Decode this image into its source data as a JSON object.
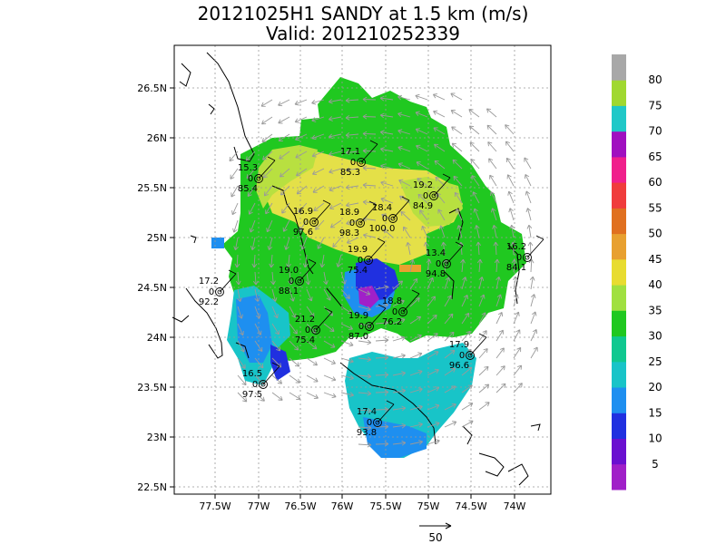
{
  "title_line1": "20121025H1 SANDY at 1.5 km (m/s)",
  "title_line2": "Valid: 201210252339",
  "lat_ticks": [
    "26.5N",
    "26N",
    "25.5N",
    "25N",
    "24.5N",
    "24N",
    "23.5N",
    "23N",
    "22.5N"
  ],
  "lon_ticks": [
    "77.5W",
    "77W",
    "76.5W",
    "76W",
    "75.5W",
    "75W",
    "74.5W",
    "74W"
  ],
  "colorbar": {
    "labels": [
      "5",
      "10",
      "15",
      "20",
      "25",
      "30",
      "35",
      "40",
      "45",
      "50",
      "55",
      "60",
      "65",
      "70",
      "75",
      "80"
    ],
    "colors": [
      "#a020c8",
      "#6a10d0",
      "#2030e0",
      "#1e8ff0",
      "#18c4c8",
      "#10c890",
      "#20c820",
      "#a0e040",
      "#e8dc30",
      "#e8a030",
      "#e07020",
      "#f03c3c",
      "#f0208c",
      "#a010c0",
      "#20c8c8",
      "#a0d830",
      "#a8a8a8"
    ]
  },
  "reference_vector": {
    "label": "50"
  },
  "stations": [
    {
      "top": "17.1",
      "mid": "0",
      "bottom": "85.3"
    },
    {
      "top": "15.3",
      "mid": "0",
      "bottom": "85.4"
    },
    {
      "top": "19.2",
      "mid": "0",
      "bottom": "84.9"
    },
    {
      "top": "16.9",
      "mid": "0",
      "bottom": "97.6"
    },
    {
      "top": "18.9",
      "mid": "0",
      "bottom": "98.3"
    },
    {
      "top": "18.4",
      "mid": "0",
      "bottom": "100.0"
    },
    {
      "top": "13.4",
      "mid": "0",
      "bottom": "94.8"
    },
    {
      "top": "16.2",
      "mid": "0",
      "bottom": "84.1"
    },
    {
      "top": "17.2",
      "mid": "0",
      "bottom": "92.2"
    },
    {
      "top": "19.0",
      "mid": "0",
      "bottom": "88.1"
    },
    {
      "top": "19.9",
      "mid": "0",
      "bottom": "75.4"
    },
    {
      "top": "18.8",
      "mid": "0",
      "bottom": "76.2"
    },
    {
      "top": "21.2",
      "mid": "0",
      "bottom": "75.4"
    },
    {
      "top": "19.9",
      "mid": "0",
      "bottom": "87.0"
    },
    {
      "top": "17.9",
      "mid": "0",
      "bottom": "96.6"
    },
    {
      "top": "16.5",
      "mid": "0",
      "bottom": "97.5"
    },
    {
      "top": "17.4",
      "mid": "0",
      "bottom": "93.8"
    }
  ]
}
